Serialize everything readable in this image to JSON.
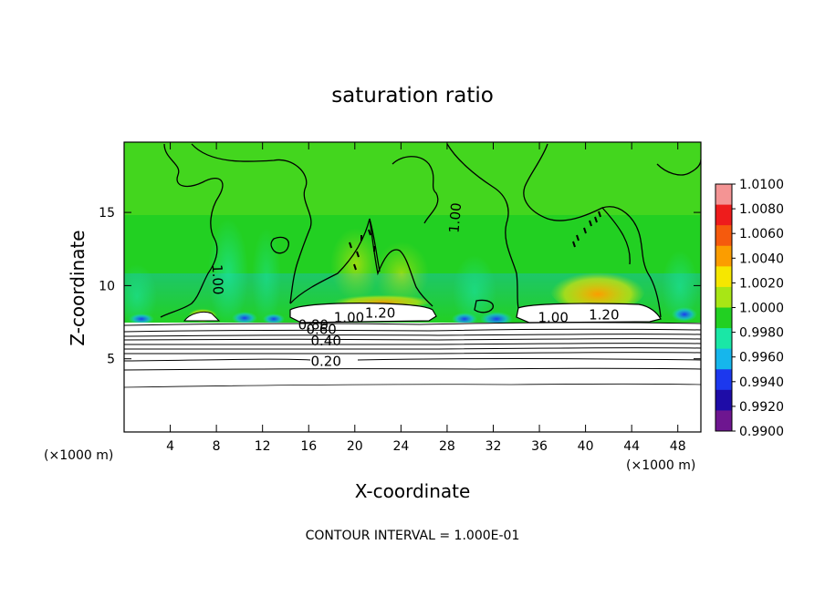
{
  "chart_data": {
    "type": "heatmap",
    "title": "saturation ratio",
    "xlabel": "X-coordinate",
    "ylabel": "Z-coordinate",
    "x_unit_label": "(×1000 m)",
    "x_unit_label_right": "(×1000 m)",
    "xlim": [
      0,
      50
    ],
    "ylim": [
      0,
      19.8
    ],
    "xticks": [
      4,
      8,
      12,
      16,
      20,
      24,
      28,
      32,
      36,
      40,
      44,
      48
    ],
    "xtick_labels": [
      "4",
      "8",
      "12",
      "16",
      "20",
      "24",
      "28",
      "32",
      "36",
      "40",
      "44",
      "48"
    ],
    "yticks": [
      5,
      10,
      15
    ],
    "ytick_labels": [
      "5",
      "10",
      "15"
    ],
    "footer": "CONTOUR INTERVAL = 1.000E-01",
    "colorbar": {
      "ticks": [
        "1.0100",
        "1.0080",
        "1.0060",
        "1.0040",
        "1.0020",
        "1.0000",
        "0.9980",
        "0.9960",
        "0.9940",
        "0.9920",
        "0.9900"
      ],
      "colors": [
        "#f49494",
        "#ee1c1c",
        "#f55a0d",
        "#fb9d00",
        "#f6e700",
        "#a8e615",
        "#22d022",
        "#1ae7a6",
        "#16b6ec",
        "#1c38ee",
        "#1e0ca7",
        "#6e1690"
      ]
    },
    "contour_labels": [
      {
        "text": "1.00",
        "x": 29.1,
        "y": 14.6,
        "rotate": -85
      },
      {
        "text": "1.00",
        "x": 7.7,
        "y": 10.4,
        "rotate": 88
      },
      {
        "text": "1.00",
        "x": 19.5,
        "y": 7.5,
        "rotate": 0
      },
      {
        "text": "1.20",
        "x": 22.2,
        "y": 7.8,
        "rotate": 0
      },
      {
        "text": "1.00",
        "x": 37.2,
        "y": 7.5,
        "rotate": 0
      },
      {
        "text": "1.20",
        "x": 41.6,
        "y": 7.7,
        "rotate": 0
      },
      {
        "text": "0.80",
        "x": 16.4,
        "y": 7.0,
        "rotate": 0
      },
      {
        "text": "0.60",
        "x": 17.1,
        "y": 6.7,
        "rotate": 0
      },
      {
        "text": "0.40",
        "x": 17.5,
        "y": 5.9,
        "rotate": 0
      },
      {
        "text": "0.20",
        "x": 17.5,
        "y": 4.5,
        "rotate": 0
      }
    ]
  }
}
